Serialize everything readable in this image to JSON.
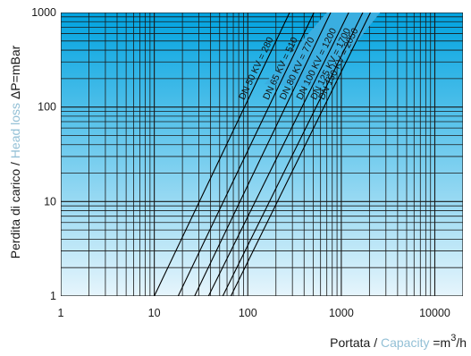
{
  "chart_data": {
    "type": "line",
    "x_scale": "log",
    "y_scale": "log",
    "xlim": [
      1,
      20000
    ],
    "ylim": [
      1,
      1000
    ],
    "x_ticks": [
      "1",
      "10",
      "100",
      "1000",
      "10000"
    ],
    "y_ticks": [
      "1",
      "10",
      "100",
      "1000"
    ],
    "ylabel": {
      "part1": "Perdita di carico / ",
      "part2": "Head loss",
      "part3": " ΔP=mBar"
    },
    "xlabel": {
      "part1": "Portata / ",
      "part2": "Capacity",
      "part3": " =m",
      "sup": "3",
      "part4": "/h"
    },
    "grid": true,
    "series": [
      {
        "name": "DN 50 KV = 280",
        "kv": 280,
        "points": [
          {
            "x": 10,
            "y": 1
          },
          {
            "x": 280,
            "y": 1000
          }
        ]
      },
      {
        "name": "DN 65 KV = 510",
        "kv": 510,
        "points": [
          {
            "x": 18,
            "y": 1
          },
          {
            "x": 510,
            "y": 1000
          }
        ]
      },
      {
        "name": "DN 80 KV = 770",
        "kv": 770,
        "points": [
          {
            "x": 27,
            "y": 1
          },
          {
            "x": 770,
            "y": 1000
          }
        ]
      },
      {
        "name": "DN 100 KV = 1200",
        "kv": 1200,
        "points": [
          {
            "x": 38,
            "y": 1
          },
          {
            "x": 1200,
            "y": 1000
          }
        ]
      },
      {
        "name": "DN 125 KV = 1700",
        "kv": 1700,
        "points": [
          {
            "x": 54,
            "y": 1
          },
          {
            "x": 1700,
            "y": 1000
          }
        ]
      },
      {
        "name": "DN 150 KV = 2050",
        "kv": 2050,
        "points": [
          {
            "x": 66,
            "y": 1
          },
          {
            "x": 2050,
            "y": 1000
          }
        ]
      }
    ],
    "colors": {
      "gradient_top": "#00a3e0",
      "gradient_bottom": "#e6f5fc",
      "grid": "#1a1a1a",
      "series": "#000000",
      "highlight": "#93c0d6",
      "label_band": "#3aaee0"
    }
  }
}
